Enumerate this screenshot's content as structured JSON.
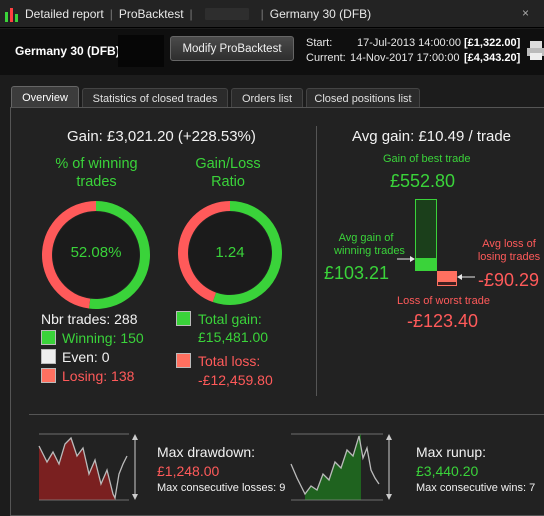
{
  "window": {
    "title_parts": [
      "Detailed report",
      "ProBacktest",
      "Germany 30 (DFB)"
    ],
    "close_glyph": "×"
  },
  "header": {
    "instrument": "Germany 30 (DFB)",
    "modify_button": "Modify ProBacktest",
    "start_label": "Start:",
    "start_date": "17-Jul-2013 14:00:00",
    "start_value": "[£1,322.00]",
    "current_label": "Current:",
    "current_date": "14-Nov-2017 17:00:00",
    "current_value": "[£4,343.20]"
  },
  "tabs": [
    {
      "label": "Overview",
      "active": true
    },
    {
      "label": "Statistics of closed trades",
      "active": false
    },
    {
      "label": "Orders list",
      "active": false
    },
    {
      "label": "Closed positions list",
      "active": false
    }
  ],
  "overview": {
    "gain_headline": "Gain: £3,021.20 (+228.53%)",
    "winning_pct_title_1": "% of winning",
    "winning_pct_title_2": "trades",
    "winning_pct_value": "52.08%",
    "winning_fraction": 0.5208,
    "ratio_title_1": "Gain/Loss",
    "ratio_title_2": "Ratio",
    "ratio_value": "1.24",
    "ratio_gain_fraction": 0.554,
    "nbr_trades": "Nbr trades: 288",
    "winning": "Winning: 150",
    "even": "Even: 0",
    "losing": "Losing: 138",
    "total_gain_label": "Total gain:",
    "total_gain_value": "£15,481.00",
    "total_loss_label": "Total loss:",
    "total_loss_value": "-£12,459.80"
  },
  "avg": {
    "headline": "Avg gain: £10.49 / trade",
    "best_label": "Gain of best trade",
    "best_value": "£552.80",
    "avg_gain_label_1": "Avg gain of",
    "avg_gain_label_2": "winning trades",
    "avg_gain_value": "£103.21",
    "avg_loss_label_1": "Avg loss of",
    "avg_loss_label_2": "losing trades",
    "avg_loss_value": "-£90.29",
    "worst_label": "Loss of worst trade",
    "worst_value": "-£123.40"
  },
  "drawdown": {
    "title": "Max drawdown:",
    "value": "£1,248.00",
    "consecutive": "Max consecutive losses: 9"
  },
  "runup": {
    "title": "Max runup:",
    "value": "£3,440.20",
    "consecutive": "Max consecutive wins: 7"
  },
  "colors": {
    "gain": "#3ad33a",
    "loss": "#ff5a5a",
    "panel": "#222222"
  }
}
